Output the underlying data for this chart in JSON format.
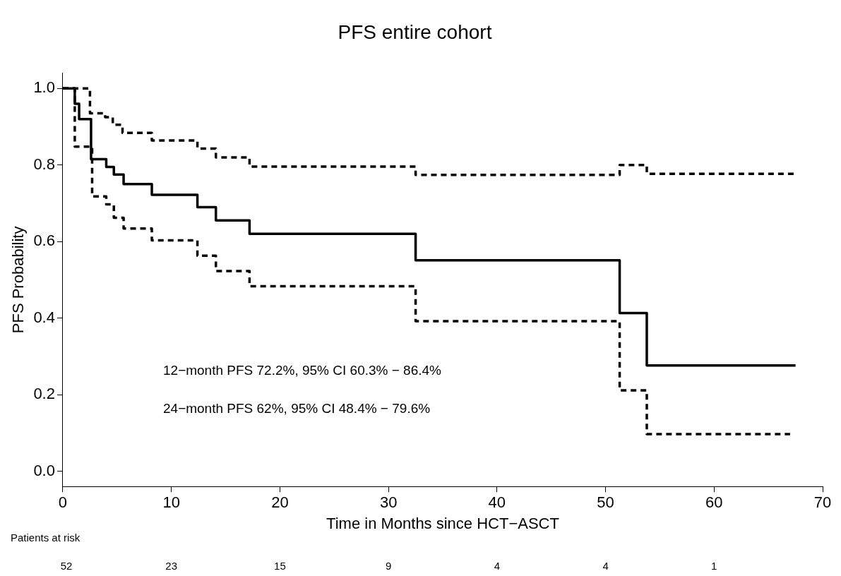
{
  "chart_data": {
    "type": "step",
    "title": "PFS entire cohort",
    "xlabel": "Time in Months since HCT−ASCT",
    "ylabel": "PFS Probability",
    "xlim": [
      0,
      70
    ],
    "xticks": [
      0,
      10,
      20,
      30,
      40,
      50,
      60,
      70
    ],
    "ylim": [
      -0.04,
      1.04
    ],
    "yticks": [
      {
        "value": 0,
        "label": "0.0"
      },
      {
        "value": 0.2,
        "label": "0.2"
      },
      {
        "value": 0.4,
        "label": "0.4"
      },
      {
        "value": 0.6,
        "label": "0.6"
      },
      {
        "value": 0.8,
        "label": "0.8"
      },
      {
        "value": 1,
        "label": "1.0"
      }
    ],
    "grid": false,
    "legend": false,
    "marker": "none",
    "series": [
      {
        "color": "#000000",
        "line_style": "solid",
        "x": [
          0,
          1.1,
          1.5,
          2.6,
          4.0,
          4.7,
          5.6,
          8.2,
          12.4,
          14.1,
          17.2,
          32.5,
          51.3,
          53.8,
          67.5
        ],
        "values": [
          1,
          0.96,
          0.92,
          0.815,
          0.795,
          0.775,
          0.75,
          0.722,
          0.69,
          0.655,
          0.62,
          0.551,
          0.413,
          0.276,
          0.276
        ]
      },
      {
        "color": "#000000",
        "line_style": "dashed",
        "x": [
          0,
          2.5,
          3.9,
          4.6,
          5.5,
          8.2,
          12.4,
          14.1,
          17.2,
          32.5,
          51.3,
          53.8,
          67.5
        ],
        "values": [
          1,
          0.935,
          0.925,
          0.905,
          0.884,
          0.864,
          0.843,
          0.82,
          0.796,
          0.774,
          0.8,
          0.777,
          0.777
        ]
      },
      {
        "color": "#000000",
        "line_style": "dashed",
        "x": [
          0,
          1.1,
          1.5,
          2.7,
          4.0,
          4.7,
          5.6,
          8.2,
          12.4,
          14.1,
          17.2,
          32.5,
          51.3,
          53.8,
          67.0
        ],
        "values": [
          1,
          0.848,
          0.848,
          0.718,
          0.697,
          0.662,
          0.634,
          0.603,
          0.563,
          0.523,
          0.483,
          0.392,
          0.211,
          0.097,
          0.097
        ]
      }
    ],
    "annotations": [
      "12−month PFS 72.2%, 95% CI 60.3% − 86.4%",
      "24−month PFS 62%, 95% CI 48.4% − 79.6%",
      "Patients at risk",
      "52",
      "23",
      "15",
      "9",
      "4",
      "4",
      "1"
    ]
  }
}
